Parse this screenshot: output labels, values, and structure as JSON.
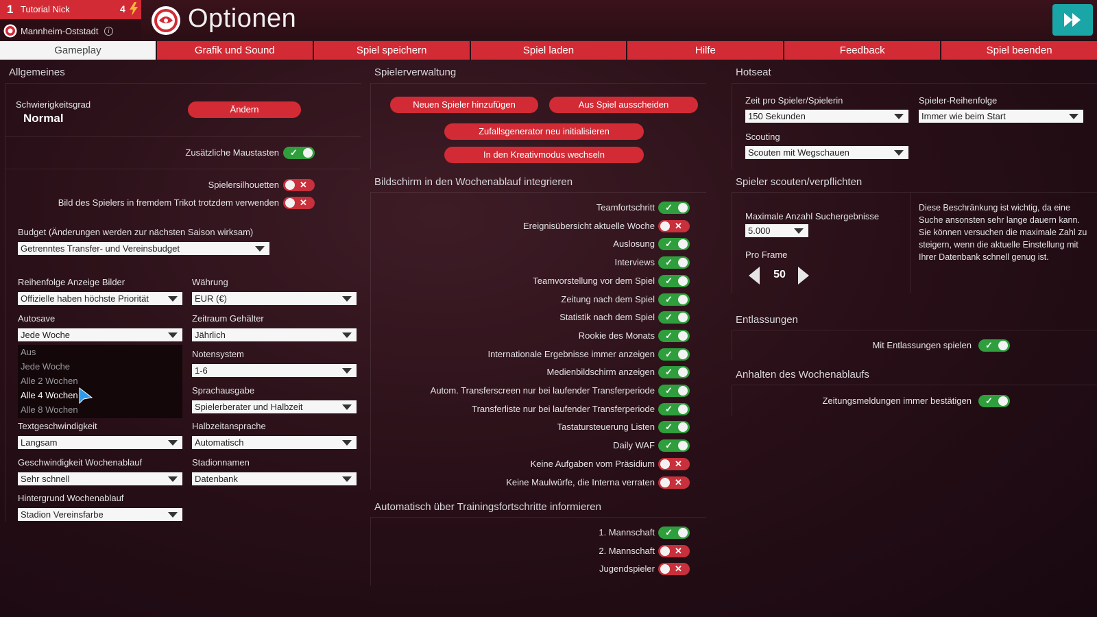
{
  "header": {
    "player_rank": "1",
    "player_name": "Tutorial Nick",
    "player_coins": "4",
    "club_name": "Mannheim-Oststadt",
    "page_title": "Optionen"
  },
  "tabs": [
    {
      "label": "Gameplay",
      "active": true
    },
    {
      "label": "Grafik und Sound"
    },
    {
      "label": "Spiel speichern"
    },
    {
      "label": "Spiel laden"
    },
    {
      "label": "Hilfe"
    },
    {
      "label": "Feedback"
    },
    {
      "label": "Spiel beenden"
    }
  ],
  "general": {
    "title": "Allgemeines",
    "difficulty_label": "Schwierigkeitsgrad",
    "difficulty_value": "Normal",
    "change_button": "Ändern",
    "extra_mouse_label": "Zusätzliche Maustasten",
    "silhouettes_label": "Spielersilhouetten",
    "foreign_kit_label": "Bild des Spielers in fremdem Trikot trotzdem verwenden",
    "budget_label": "Budget (Änderungen werden zur nächsten Saison wirksam)",
    "budget_value": "Getrenntes Transfer- und Vereinsbudget",
    "image_order_label": "Reihenfolge Anzeige Bilder",
    "image_order_value": "Offizielle haben höchste Priorität",
    "currency_label": "Währung",
    "currency_value": "EUR (€)",
    "autosave_label": "Autosave",
    "autosave_value": "Jede Woche",
    "autosave_options": [
      "Aus",
      "Jede Woche",
      "Alle 2 Wochen",
      "Alle 4 Wochen",
      "Alle 8 Wochen"
    ],
    "salary_period_label": "Zeitraum Gehälter",
    "salary_period_value": "Jährlich",
    "grading_label": "Notensystem",
    "grading_value": "1-6",
    "speech_label": "Sprachausgabe",
    "speech_value": "Spielerberater und Halbzeit",
    "text_speed_label": "Textgeschwindigkeit",
    "text_speed_value": "Langsam",
    "halftime_label": "Halbzeitansprache",
    "halftime_value": "Automatisch",
    "week_speed_label": "Geschwindigkeit Wochenablauf",
    "week_speed_value": "Sehr schnell",
    "stadium_names_label": "Stadionnamen",
    "stadium_names_value": "Datenbank",
    "week_bg_label": "Hintergrund Wochenablauf",
    "week_bg_value": "Stadion Vereinsfarbe"
  },
  "player_mgmt": {
    "title": "Spielerverwaltung",
    "add_player": "Neuen Spieler hinzufügen",
    "leave_game": "Aus Spiel ausscheiden",
    "reset_rng": "Zufallsgenerator neu initialisieren",
    "creative_mode": "In den Kreativmodus wechseln"
  },
  "week_screens": {
    "title": "Bildschirm in den Wochenablauf integrieren",
    "items": [
      {
        "label": "Teamfortschritt",
        "on": true
      },
      {
        "label": "Ereignisübersicht aktuelle Woche",
        "on": false
      },
      {
        "label": "Auslosung",
        "on": true
      },
      {
        "label": "Interviews",
        "on": true
      },
      {
        "label": "Teamvorstellung vor dem Spiel",
        "on": true
      },
      {
        "label": "Zeitung nach dem Spiel",
        "on": true
      },
      {
        "label": "Statistik nach dem Spiel",
        "on": true
      },
      {
        "label": "Rookie des Monats",
        "on": true
      },
      {
        "label": "Internationale Ergebnisse immer anzeigen",
        "on": true
      },
      {
        "label": "Medienbildschirm anzeigen",
        "on": true
      },
      {
        "label": "Autom. Transferscreen nur bei laufender Transferperiode",
        "on": true
      },
      {
        "label": "Transferliste nur bei laufender Transferperiode",
        "on": true
      },
      {
        "label": "Tastatursteuerung Listen",
        "on": true
      },
      {
        "label": "Daily WAF",
        "on": true
      },
      {
        "label": "Keine Aufgaben vom Präsidium",
        "on": false
      },
      {
        "label": "Keine Maulwürfe, die Interna verraten",
        "on": false
      }
    ]
  },
  "training": {
    "title": "Automatisch über Trainingsfortschritte informieren",
    "items": [
      {
        "label": "1. Mannschaft",
        "on": true
      },
      {
        "label": "2. Mannschaft",
        "on": false
      },
      {
        "label": "Jugendspieler",
        "on": false
      }
    ]
  },
  "hotseat": {
    "title": "Hotseat",
    "time_label": "Zeit pro Spieler/Spielerin",
    "time_value": "150 Sekunden",
    "order_label": "Spieler-Reihenfolge",
    "order_value": "Immer wie beim Start",
    "scouting_label": "Scouting",
    "scouting_value": "Scouten mit Wegschauen"
  },
  "scouting": {
    "title": "Spieler scouten/verpflichten",
    "max_results_label": "Maximale Anzahl Suchergebnisse",
    "max_results_value": "5.000",
    "per_frame_label": "Pro Frame",
    "per_frame_value": "50",
    "description": "Diese Beschränkung ist wichtig, da eine Suche ansonsten sehr lange dauern kann. Sie können versuchen die maximale Zahl zu steigern, wenn die aktuelle Einstellung mit Ihrer Datenbank schnell genug ist."
  },
  "dismissals": {
    "title": "Entlassungen",
    "play_with_label": "Mit Entlassungen spielen"
  },
  "pause": {
    "title": "Anhalten des Wochenablaufs",
    "confirm_news_label": "Zeitungsmeldungen immer bestätigen"
  },
  "colors": {
    "accent_red": "#d22b35",
    "toggle_on": "#2f9e3c",
    "toggle_off": "#c8303b",
    "forward_teal": "#1aa6a6"
  }
}
